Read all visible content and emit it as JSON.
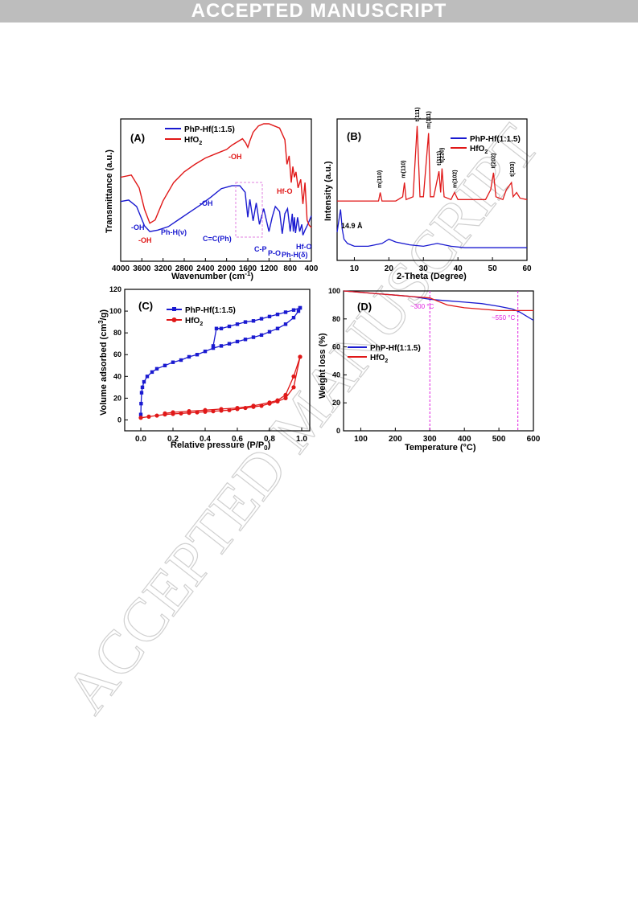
{
  "banner": "ACCEPTED MANUSCRIPT",
  "watermark": "ACCEPTED MANUSCRIPT",
  "colors": {
    "blue": "#1a1ad0",
    "red": "#e01818",
    "magenta": "#e020e0"
  },
  "panels": {
    "A": {
      "label": "(A)",
      "xlabel": "Wavenumber (cm",
      "xlabel_sup": "-1",
      "xlabel_end": ")",
      "ylabel": "Transmittance (a.u.)",
      "legend": [
        "PhP-Hf(1:1.5)",
        "HfO"
      ],
      "legend_sub": "2",
      "annotations_red": [
        "-OH",
        "-OH",
        "Hf-O"
      ],
      "annotations_blue": [
        "-OH",
        "-OH",
        "Ph-H(ν)",
        "C=C(Ph)",
        "C-P",
        "P-O",
        "Ph-H(δ)",
        "Hf-O"
      ]
    },
    "B": {
      "label": "(B)",
      "xlabel": "2-Theta (Degree)",
      "ylabel": "Intensity (a.u.)",
      "legend": [
        "PhP-Hf(1:1.5)",
        "HfO"
      ],
      "legend_sub": "2",
      "peak_labels": [
        "m(110)",
        "m(110)",
        "t(111)",
        "m(111)",
        "t(111)",
        "t(220)",
        "m(102)",
        "t(202)",
        "t(103)"
      ],
      "annotation": "14.9 Å"
    },
    "C": {
      "label": "(C)",
      "xlabel": "Relative pressure (P/P",
      "xlabel_sub": "0",
      "xlabel_end": ")",
      "ylabel": "Volume adsorbed (cm",
      "ylabel_sup": "3",
      "ylabel_end": "/g)",
      "legend": [
        "PhP-Hf(1:1.5)",
        "HfO"
      ],
      "legend_sub": "2"
    },
    "D": {
      "label": "(D)",
      "xlabel": "Temperature (°C)",
      "ylabel": "Weight loss (%)",
      "legend": [
        "PhP-Hf(1:1.5)",
        "HfO"
      ],
      "legend_sub": "2",
      "annotations": [
        "~300 °C",
        "~550 °C"
      ]
    }
  },
  "chart_data": [
    {
      "type": "line",
      "panel": "A",
      "xlabel": "Wavenumber (cm-1)",
      "ylabel": "Transmittance (a.u.)",
      "xlim": [
        4000,
        400
      ],
      "xticks": [
        4000,
        3600,
        3200,
        2800,
        2400,
        2000,
        1600,
        1200,
        800,
        400
      ],
      "series": [
        {
          "name": "PhP-Hf(1:1.5)",
          "x": [
            4000,
            3850,
            3700,
            3550,
            3450,
            3300,
            3100,
            2900,
            2700,
            2500,
            2300,
            2100,
            1900,
            1750,
            1650,
            1600,
            1560,
            1500,
            1440,
            1380,
            1300,
            1200,
            1140,
            1080,
            1000,
            950,
            900,
            850,
            800,
            760,
            740,
            720,
            700,
            660,
            620,
            580,
            560,
            520,
            480,
            440,
            400
          ],
          "y": [
            0.52,
            0.54,
            0.45,
            0.18,
            0.1,
            0.12,
            0.17,
            0.27,
            0.37,
            0.47,
            0.58,
            0.7,
            0.74,
            0.74,
            0.65,
            0.3,
            0.55,
            0.25,
            0.5,
            0.2,
            0.42,
            0.1,
            0.3,
            0.45,
            0.38,
            0.07,
            0.35,
            0.42,
            0.1,
            0.35,
            0.1,
            0.3,
            0.08,
            0.3,
            0.1,
            0.2,
            0.05,
            0.12,
            0.18,
            0.25,
            0.32
          ]
        },
        {
          "name": "HfO2",
          "x": [
            4000,
            3800,
            3650,
            3550,
            3450,
            3350,
            3200,
            3000,
            2800,
            2600,
            2400,
            2200,
            2000,
            1900,
            1800,
            1700,
            1640,
            1600,
            1560,
            1500,
            1400,
            1300,
            1200,
            1100,
            1000,
            900,
            860,
            820,
            780,
            750,
            720,
            690,
            650,
            600,
            560,
            520,
            480,
            440,
            400
          ],
          "y": [
            0.5,
            0.52,
            0.4,
            0.2,
            0.07,
            0.1,
            0.28,
            0.45,
            0.55,
            0.62,
            0.68,
            0.72,
            0.76,
            0.8,
            0.83,
            0.86,
            0.82,
            0.78,
            0.84,
            0.92,
            0.98,
            1.0,
            1.0,
            0.98,
            0.96,
            0.85,
            0.62,
            0.7,
            0.45,
            0.6,
            0.5,
            0.55,
            0.4,
            0.48,
            0.25,
            0.45,
            0.1,
            0.05,
            0.03
          ]
        }
      ]
    },
    {
      "type": "line",
      "panel": "B",
      "xlabel": "2-Theta (Degree)",
      "ylabel": "Intensity (a.u.)",
      "xlim": [
        5,
        60
      ],
      "xticks": [
        10,
        20,
        30,
        40,
        50,
        60
      ],
      "series": [
        {
          "name": "PhP-Hf(1:1.5)",
          "x": [
            5,
            5.5,
            6,
            6.5,
            7,
            8,
            10,
            14,
            18,
            20,
            22,
            26,
            30,
            34,
            38,
            42,
            46,
            50,
            54,
            58,
            60
          ],
          "y": [
            0.2,
            0.28,
            0.36,
            0.22,
            0.15,
            0.12,
            0.1,
            0.1,
            0.12,
            0.15,
            0.13,
            0.11,
            0.1,
            0.12,
            0.1,
            0.09,
            0.09,
            0.09,
            0.09,
            0.09,
            0.09
          ]
        },
        {
          "name": "HfO2",
          "x": [
            5,
            10,
            15,
            17,
            17.5,
            18,
            22,
            24,
            24.5,
            25,
            27,
            28.2,
            29,
            30,
            31.5,
            32,
            33,
            34.5,
            35,
            35.4,
            36,
            38,
            39,
            40,
            42,
            45,
            48,
            49.5,
            50.3,
            51,
            53,
            54,
            55.5,
            56,
            57,
            58,
            60
          ],
          "y": [
            0.42,
            0.42,
            0.42,
            0.42,
            0.48,
            0.42,
            0.42,
            0.45,
            0.55,
            0.43,
            0.45,
            0.95,
            0.45,
            0.45,
            0.9,
            0.45,
            0.45,
            0.63,
            0.48,
            0.65,
            0.45,
            0.43,
            0.48,
            0.43,
            0.43,
            0.43,
            0.43,
            0.5,
            0.62,
            0.45,
            0.43,
            0.5,
            0.55,
            0.45,
            0.48,
            0.44,
            0.43
          ]
        }
      ]
    },
    {
      "type": "line",
      "panel": "C",
      "xlabel": "Relative pressure (P/P0)",
      "ylabel": "Volume adsorbed (cm3/g)",
      "xlim": [
        -0.1,
        1.05
      ],
      "ylim": [
        -10,
        120
      ],
      "xticks": [
        0.0,
        0.2,
        0.4,
        0.6,
        0.8,
        1.0
      ],
      "yticks": [
        0,
        20,
        40,
        60,
        80,
        100,
        120
      ],
      "series": [
        {
          "name": "PhP-Hf(1:1.5) adsorption",
          "x": [
            0.0,
            0.002,
            0.005,
            0.01,
            0.02,
            0.04,
            0.07,
            0.1,
            0.15,
            0.2,
            0.25,
            0.3,
            0.35,
            0.4,
            0.45,
            0.5,
            0.55,
            0.6,
            0.65,
            0.7,
            0.75,
            0.8,
            0.85,
            0.9,
            0.95,
            0.98,
            0.99
          ],
          "y": [
            5,
            15,
            25,
            30,
            35,
            40,
            44,
            47,
            50,
            53,
            55,
            58,
            60,
            63,
            66,
            68,
            70,
            72,
            74,
            76,
            78,
            81,
            84,
            88,
            94,
            100,
            103
          ]
        },
        {
          "name": "PhP-Hf(1:1.5) desorption",
          "x": [
            0.99,
            0.95,
            0.9,
            0.85,
            0.8,
            0.75,
            0.7,
            0.65,
            0.6,
            0.55,
            0.5,
            0.47,
            0.45
          ],
          "y": [
            103,
            101,
            99,
            97,
            95,
            93,
            91,
            90,
            88,
            86,
            84,
            84,
            68
          ]
        },
        {
          "name": "HfO2 adsorption",
          "x": [
            0.0,
            0.05,
            0.1,
            0.15,
            0.2,
            0.25,
            0.3,
            0.35,
            0.4,
            0.45,
            0.5,
            0.55,
            0.6,
            0.65,
            0.7,
            0.75,
            0.8,
            0.85,
            0.9,
            0.95,
            0.99
          ],
          "y": [
            2,
            3,
            4,
            5,
            5.5,
            6,
            6.5,
            7,
            7.5,
            8,
            8.5,
            9,
            10,
            11,
            12,
            13,
            15,
            17,
            20,
            30,
            58
          ]
        },
        {
          "name": "HfO2 desorption",
          "x": [
            0.99,
            0.95,
            0.9,
            0.85,
            0.8,
            0.7,
            0.6,
            0.5,
            0.4,
            0.3,
            0.2,
            0.15
          ],
          "y": [
            58,
            40,
            23,
            18,
            16,
            13,
            11,
            10,
            9,
            8,
            7,
            6
          ]
        }
      ]
    },
    {
      "type": "line",
      "panel": "D",
      "xlabel": "Temperature (°C)",
      "ylabel": "Weight loss (%)",
      "xlim": [
        50,
        600
      ],
      "ylim": [
        0,
        100
      ],
      "xticks": [
        100,
        200,
        300,
        400,
        500,
        600
      ],
      "yticks": [
        0,
        20,
        40,
        60,
        80,
        100
      ],
      "series": [
        {
          "name": "PhP-Hf(1:1.5)",
          "x": [
            50,
            100,
            150,
            200,
            250,
            300,
            350,
            400,
            450,
            500,
            540,
            560,
            580,
            600
          ],
          "y": [
            100,
            99,
            98,
            97,
            96,
            94,
            93,
            92,
            91,
            89,
            87,
            85,
            82,
            79
          ]
        },
        {
          "name": "HfO2",
          "x": [
            50,
            100,
            150,
            200,
            250,
            300,
            320,
            350,
            400,
            450,
            500,
            550,
            600
          ],
          "y": [
            100,
            99,
            98,
            97,
            96,
            95,
            93,
            90,
            88,
            87,
            86,
            86,
            86
          ]
        }
      ]
    }
  ]
}
